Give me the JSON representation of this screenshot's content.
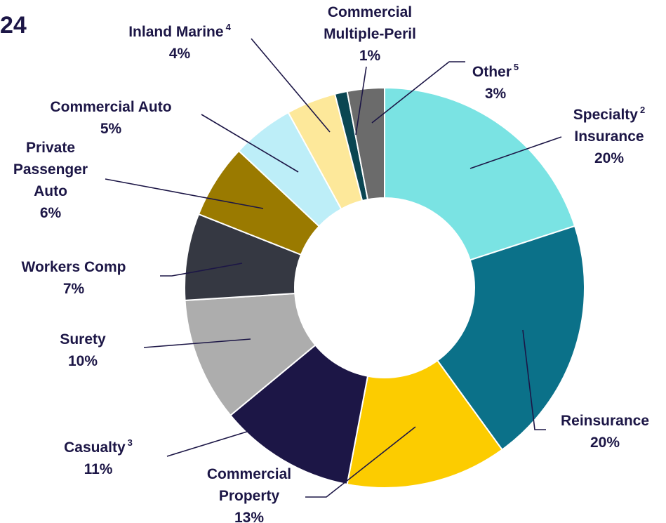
{
  "chart_data": {
    "type": "donut",
    "title": "24",
    "categories": [
      [
        "Specialty",
        "Insurance"
      ],
      [
        "Reinsurance"
      ],
      [
        "Commercial",
        "Property"
      ],
      [
        "Casualty"
      ],
      [
        "Surety"
      ],
      [
        "Workers Comp"
      ],
      [
        "Private",
        "Passenger",
        "Auto"
      ],
      [
        "Commercial Auto"
      ],
      [
        "Inland Marine"
      ],
      [
        "Commercial",
        "Multiple-Peril"
      ],
      [
        "Other"
      ]
    ],
    "footnotes": [
      "2",
      null,
      null,
      "3",
      null,
      null,
      null,
      null,
      "4",
      null,
      "5"
    ],
    "values": [
      20,
      20,
      13,
      11,
      10,
      7,
      6,
      5,
      4,
      1,
      3
    ],
    "value_labels": [
      "20%",
      "20%",
      "13%",
      "11%",
      "10%",
      "7%",
      "6%",
      "5%",
      "4%",
      "1%",
      "3%"
    ],
    "colors": [
      "#7ae3e3",
      "#0b7189",
      "#fccc00",
      "#1c1646",
      "#adadad",
      "#353842",
      "#9a7a00",
      "#bdeef8",
      "#fde89a",
      "#0a4652",
      "#6b6b6b"
    ]
  }
}
